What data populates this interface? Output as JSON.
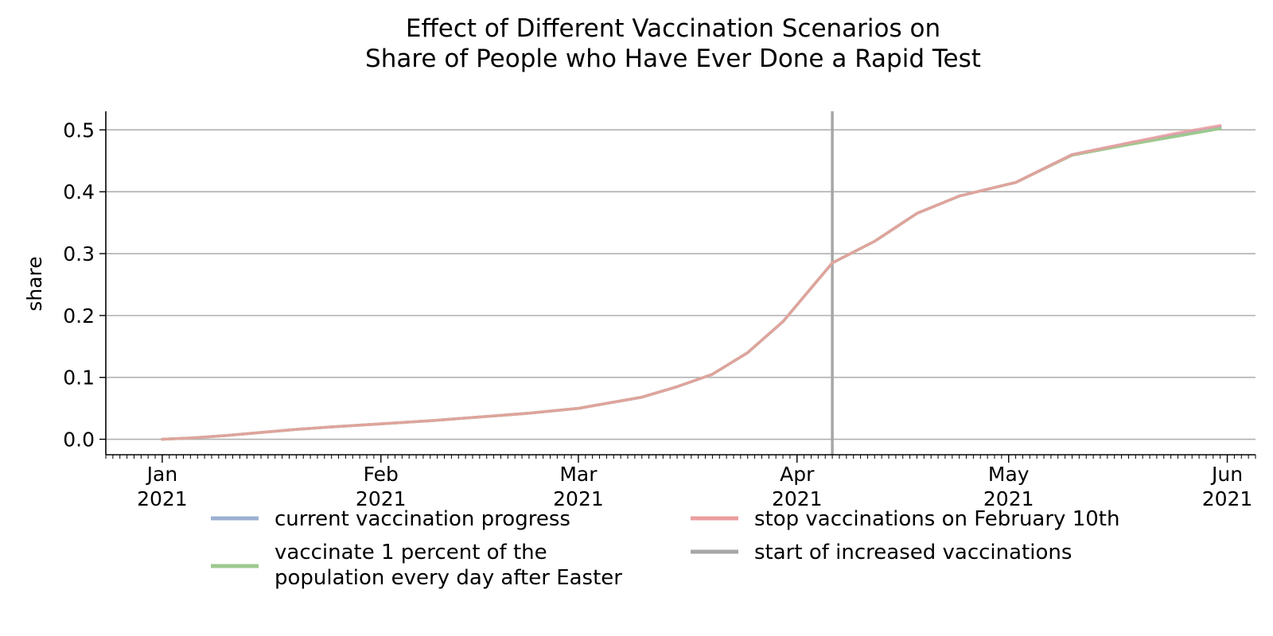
{
  "chart_data": {
    "type": "line",
    "title_lines": [
      "Effect of Different Vaccination Scenarios on",
      "Share of People who Have Ever Done a Rapid Test"
    ],
    "xlabel": "",
    "ylabel": "share",
    "xlim": [
      "2020-12-24",
      "2021-06-05"
    ],
    "ylim": [
      -0.025,
      0.53
    ],
    "yticks": [
      0.0,
      0.1,
      0.2,
      0.3,
      0.4,
      0.5
    ],
    "ytick_labels": [
      "0.0",
      "0.1",
      "0.2",
      "0.3",
      "0.4",
      "0.5"
    ],
    "xticks": [
      {
        "date": "2021-01-01",
        "line1": "Jan",
        "line2": "2021"
      },
      {
        "date": "2021-02-01",
        "line1": "Feb",
        "line2": "2021"
      },
      {
        "date": "2021-03-01",
        "line1": "Mar",
        "line2": "2021"
      },
      {
        "date": "2021-04-01",
        "line1": "Apr",
        "line2": "2021"
      },
      {
        "date": "2021-05-01",
        "line1": "May",
        "line2": "2021"
      },
      {
        "date": "2021-06-01",
        "line1": "Jun",
        "line2": "2021"
      }
    ],
    "grid": "horizontal",
    "legend_position": "bottom",
    "vline": {
      "date": "2021-04-06",
      "color": "#a6a6a6",
      "label": "start of increased vaccinations"
    },
    "x": [
      "2021-01-01",
      "2021-01-05",
      "2021-01-10",
      "2021-01-15",
      "2021-01-20",
      "2021-01-25",
      "2021-02-01",
      "2021-02-08",
      "2021-02-15",
      "2021-02-22",
      "2021-03-01",
      "2021-03-05",
      "2021-03-10",
      "2021-03-15",
      "2021-03-20",
      "2021-03-25",
      "2021-03-30",
      "2021-04-06",
      "2021-04-12",
      "2021-04-18",
      "2021-04-24",
      "2021-05-02",
      "2021-05-10",
      "2021-05-18",
      "2021-05-25",
      "2021-05-31"
    ],
    "series": [
      {
        "name": "current vaccination progress",
        "color": "#9db0d3",
        "values": [
          0.0,
          0.002,
          0.006,
          0.011,
          0.016,
          0.02,
          0.025,
          0.03,
          0.036,
          0.042,
          0.05,
          0.058,
          0.068,
          0.085,
          0.105,
          0.14,
          0.19,
          0.285,
          0.32,
          0.365,
          0.393,
          0.415,
          0.46,
          0.478,
          0.493,
          0.505
        ]
      },
      {
        "name": "vaccinate 1 percent of the population every day after Easter",
        "color": "#9cc98f",
        "values": [
          0.0,
          0.002,
          0.006,
          0.011,
          0.016,
          0.02,
          0.025,
          0.03,
          0.036,
          0.042,
          0.05,
          0.058,
          0.068,
          0.085,
          0.105,
          0.14,
          0.19,
          0.285,
          0.32,
          0.365,
          0.393,
          0.415,
          0.459,
          0.476,
          0.49,
          0.502
        ]
      },
      {
        "name": "stop vaccinations on February 10th",
        "color": "#eb9d9f",
        "values": [
          0.0,
          0.002,
          0.006,
          0.011,
          0.016,
          0.02,
          0.025,
          0.03,
          0.036,
          0.042,
          0.05,
          0.058,
          0.068,
          0.085,
          0.105,
          0.14,
          0.19,
          0.285,
          0.32,
          0.365,
          0.393,
          0.415,
          0.46,
          0.479,
          0.495,
          0.507
        ]
      }
    ],
    "legend": {
      "entries": [
        {
          "label_lines": [
            "current vaccination progress"
          ],
          "color": "#9db0d3"
        },
        {
          "label_lines": [
            "vaccinate 1 percent of the",
            "population every day after Easter"
          ],
          "color": "#9cc98f"
        },
        {
          "label_lines": [
            "stop vaccinations on February 10th"
          ],
          "color": "#eb9d9f"
        },
        {
          "label_lines": [
            "start of increased vaccinations"
          ],
          "color": "#a6a6a6"
        }
      ]
    }
  }
}
